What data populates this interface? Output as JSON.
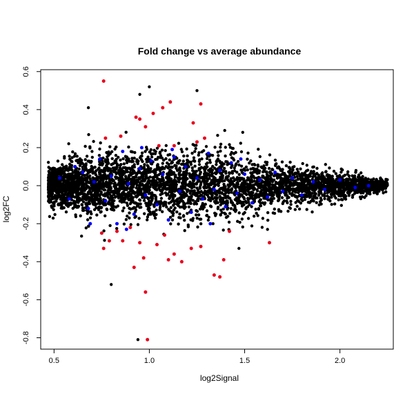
{
  "chart_data": {
    "type": "scatter",
    "title": "Fold change vs average abundance",
    "xlabel": "log2Signal",
    "ylabel": "log2FC",
    "xlim": [
      0.43,
      2.28
    ],
    "ylim": [
      -0.86,
      0.61
    ],
    "xticks": [
      0.5,
      1.0,
      1.5,
      2.0
    ],
    "xtick_labels": [
      "0.5",
      "1.0",
      "1.5",
      "2.0"
    ],
    "yticks": [
      -0.8,
      -0.6,
      -0.4,
      -0.2,
      0.0,
      0.2,
      0.4,
      0.6
    ],
    "ytick_labels": [
      "-0.8",
      "-0.6",
      "-0.4",
      "-0.2",
      "0.0",
      "0.2",
      "0.4",
      "0.6"
    ],
    "grid": false,
    "colors": {
      "red": "#e8001c",
      "blue": "#0000ff",
      "black": "#000000"
    },
    "series": [
      {
        "color": "#e8001c",
        "points": [
          [
            0.76,
            0.55
          ],
          [
            0.93,
            0.36
          ],
          [
            0.95,
            0.35
          ],
          [
            1.02,
            0.38
          ],
          [
            1.07,
            0.41
          ],
          [
            1.11,
            0.44
          ],
          [
            1.27,
            0.43
          ],
          [
            1.23,
            0.33
          ],
          [
            0.98,
            0.31
          ],
          [
            1.05,
            0.21
          ],
          [
            1.13,
            0.21
          ],
          [
            0.85,
            0.26
          ],
          [
            1.29,
            0.25
          ],
          [
            1.25,
            0.23
          ],
          [
            0.77,
            0.25
          ],
          [
            0.75,
            -0.25
          ],
          [
            0.79,
            -0.29
          ],
          [
            0.76,
            -0.33
          ],
          [
            0.86,
            -0.29
          ],
          [
            0.95,
            -0.3
          ],
          [
            0.97,
            -0.38
          ],
          [
            1.04,
            -0.31
          ],
          [
            1.13,
            -0.36
          ],
          [
            1.17,
            -0.4
          ],
          [
            1.22,
            -0.33
          ],
          [
            1.27,
            -0.32
          ],
          [
            1.34,
            -0.47
          ],
          [
            1.37,
            -0.48
          ],
          [
            1.39,
            -0.39
          ],
          [
            1.42,
            -0.24
          ],
          [
            1.63,
            -0.3
          ],
          [
            0.92,
            -0.43
          ],
          [
            0.98,
            -0.56
          ],
          [
            0.99,
            -0.81
          ],
          [
            1.1,
            -0.39
          ],
          [
            1.08,
            -0.26
          ],
          [
            0.9,
            -0.22
          ],
          [
            0.83,
            -0.24
          ]
        ]
      },
      {
        "color": "#0000ff",
        "points": [
          [
            0.53,
            0.04
          ],
          [
            0.58,
            -0.07
          ],
          [
            0.61,
            0.1
          ],
          [
            0.65,
            0.07
          ],
          [
            0.68,
            -0.12
          ],
          [
            0.71,
            0.02
          ],
          [
            0.74,
            0.14
          ],
          [
            0.77,
            -0.08
          ],
          [
            0.8,
            0.05
          ],
          [
            0.83,
            -0.2
          ],
          [
            0.86,
            0.18
          ],
          [
            0.89,
            0.01
          ],
          [
            0.92,
            -0.15
          ],
          [
            0.95,
            0.09
          ],
          [
            0.98,
            -0.05
          ],
          [
            1.01,
            0.13
          ],
          [
            1.04,
            -0.1
          ],
          [
            1.07,
            0.06
          ],
          [
            1.1,
            -0.18
          ],
          [
            1.13,
            0.15
          ],
          [
            1.16,
            -0.03
          ],
          [
            1.19,
            0.1
          ],
          [
            1.22,
            -0.14
          ],
          [
            1.25,
            0.04
          ],
          [
            1.28,
            -0.07
          ],
          [
            1.31,
            0.17
          ],
          [
            1.34,
            -0.02
          ],
          [
            1.37,
            0.08
          ],
          [
            1.4,
            -0.11
          ],
          [
            1.43,
            0.12
          ],
          [
            1.46,
            -0.04
          ],
          [
            1.5,
            0.06
          ],
          [
            1.54,
            -0.09
          ],
          [
            1.58,
            0.03
          ],
          [
            1.62,
            -0.06
          ],
          [
            1.66,
            0.07
          ],
          [
            1.7,
            -0.03
          ],
          [
            1.75,
            0.04
          ],
          [
            1.8,
            -0.05
          ],
          [
            1.86,
            0.02
          ],
          [
            1.92,
            -0.02
          ],
          [
            2.0,
            0.03
          ],
          [
            2.08,
            -0.01
          ],
          [
            2.15,
            0.0
          ],
          [
            0.69,
            -0.2
          ],
          [
            0.88,
            -0.23
          ],
          [
            1.12,
            0.19
          ],
          [
            1.32,
            -0.2
          ],
          [
            0.96,
            0.2
          ],
          [
            1.48,
            0.14
          ]
        ]
      }
    ]
  }
}
